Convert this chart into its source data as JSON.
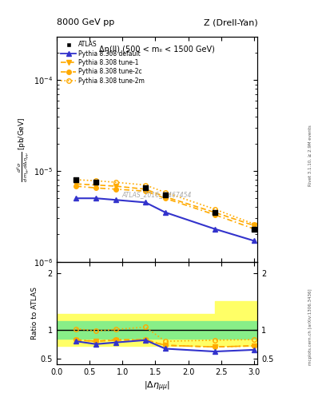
{
  "title_left": "8000 GeV pp",
  "title_right": "Z (Drell-Yan)",
  "subtitle": "Δη(ll) (500 < mₗₗ < 1500 GeV)",
  "watermark": "ATLAS_2016_I1467454",
  "ylabel_ratio": "Ratio to ATLAS",
  "right_label": "Rivet 3.1.10, ≥ 2.9M events",
  "arxiv_label": "mcplots.cern.ch [arXiv:1306.3436]",
  "atlas_x": [
    0.3,
    0.6,
    1.35,
    1.65,
    2.4,
    3.0
  ],
  "atlas_y_vals": [
    8e-06,
    7.5e-06,
    6.5e-06,
    5.5e-06,
    3.5e-06,
    2.3e-06
  ],
  "default_x": [
    0.3,
    0.6,
    0.9,
    1.35,
    1.65,
    2.4,
    3.0
  ],
  "default_y": [
    5e-06,
    5e-06,
    4.8e-06,
    4.5e-06,
    3.5e-06,
    2.3e-06,
    1.7e-06
  ],
  "tune1_x": [
    0.3,
    0.6,
    0.9,
    1.35,
    1.65,
    2.4,
    3.0
  ],
  "tune1_y": [
    7.2e-06,
    7e-06,
    6.8e-06,
    6.3e-06,
    5.2e-06,
    3.5e-06,
    2.5e-06
  ],
  "tune2c_x": [
    0.3,
    0.6,
    0.9,
    1.35,
    1.65,
    2.4,
    3.0
  ],
  "tune2c_y": [
    6.8e-06,
    6.5e-06,
    6.3e-06,
    6e-06,
    5e-06,
    3.3e-06,
    2.3e-06
  ],
  "tune2m_x": [
    0.3,
    0.6,
    0.9,
    1.35,
    1.65,
    2.4,
    3.0
  ],
  "tune2m_y": [
    8e-06,
    7.8e-06,
    7.5e-06,
    7e-06,
    5.8e-06,
    3.8e-06,
    2.6e-06
  ],
  "ratio_default_y": [
    0.8,
    0.75,
    0.78,
    0.82,
    0.67,
    0.62,
    0.65
  ],
  "ratio_tune1_y": [
    0.82,
    0.8,
    0.82,
    0.82,
    0.73,
    0.7,
    0.72
  ],
  "ratio_tune2c_y": [
    0.83,
    0.8,
    0.83,
    0.83,
    0.73,
    0.7,
    0.72
  ],
  "ratio_tune2m_y": [
    1.02,
    0.98,
    1.01,
    1.05,
    0.8,
    0.82,
    0.83
  ],
  "color_atlas": "#000000",
  "color_default": "#3333cc",
  "color_tune": "#ffaa00",
  "ylim_main": [
    1e-06,
    0.0003
  ],
  "ylim_ratio": [
    0.4,
    2.2
  ],
  "xlim": [
    0.0,
    3.05
  ]
}
